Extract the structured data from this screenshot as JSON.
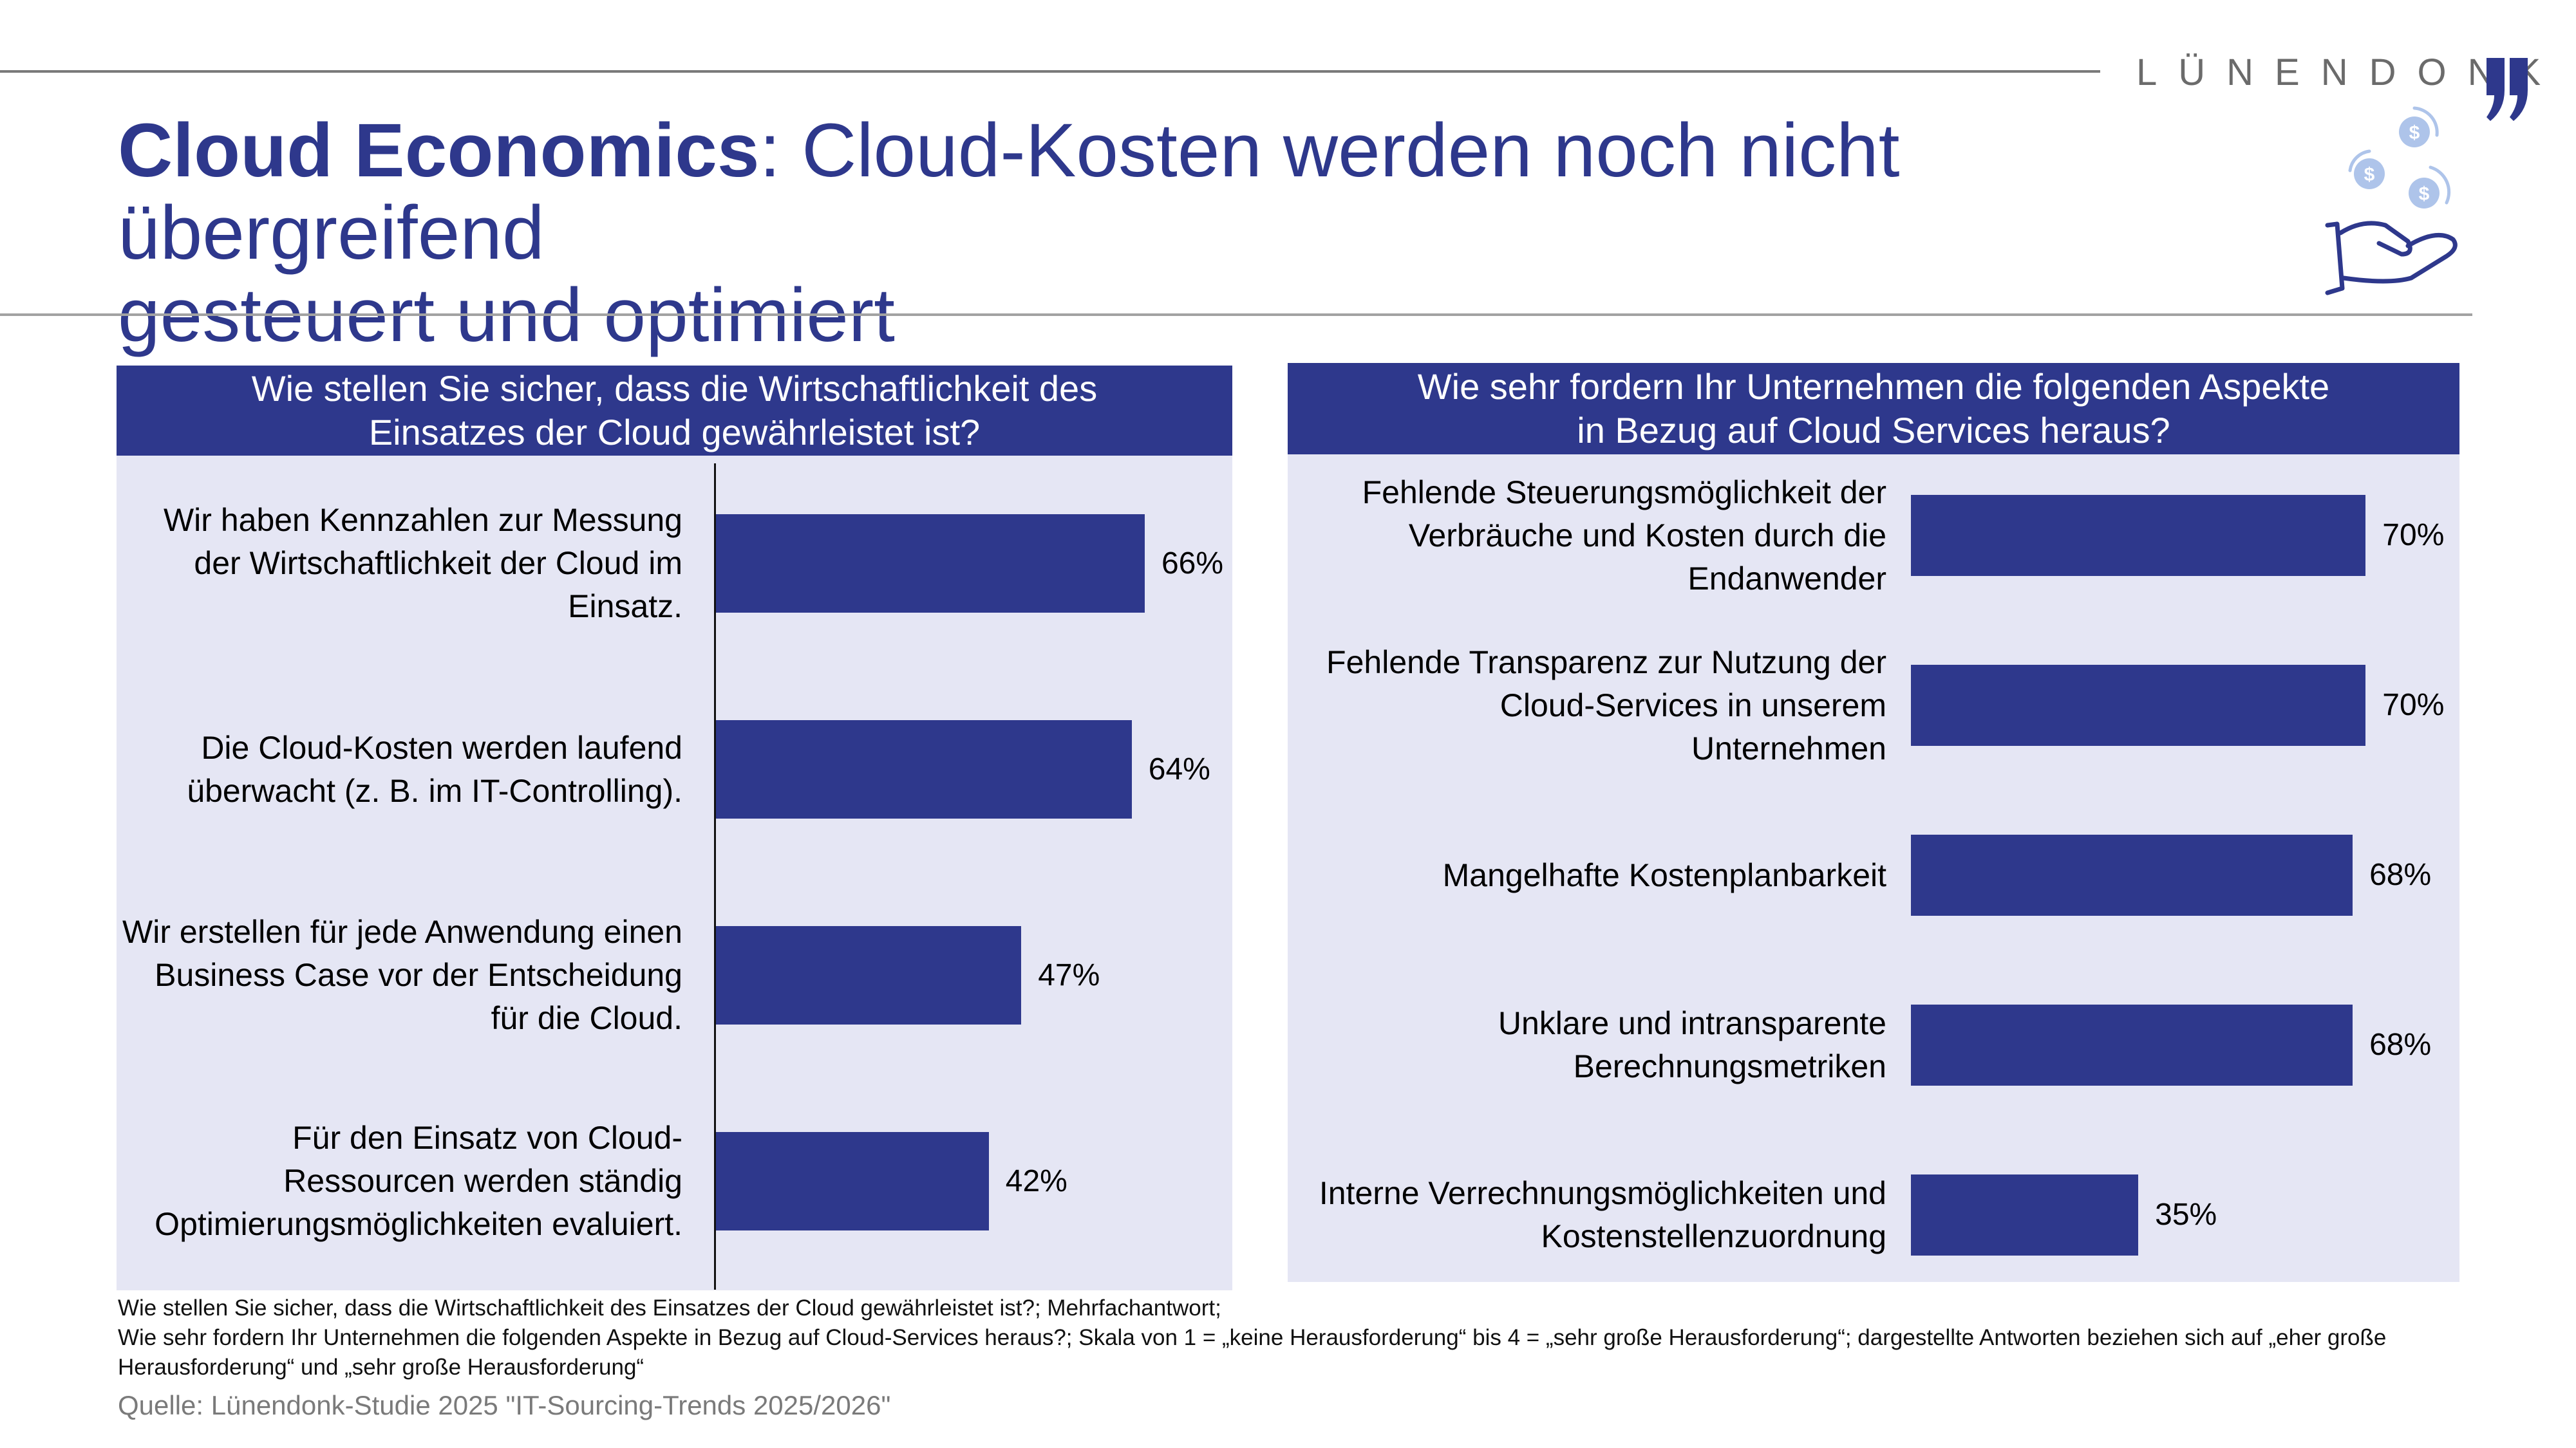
{
  "brand": {
    "name": "LÜNENDONK",
    "accent": "#2e388c",
    "icon": "quote-mark-icon"
  },
  "title": {
    "bold": "Cloud Economics",
    "rest_line1": ": Cloud-Kosten werden noch nicht übergreifend",
    "line2": "gesteuert und optimiert"
  },
  "decor_icon": "hand-with-coins-icon",
  "colors": {
    "bar": "#2e388c",
    "panel_bg": "#e5e6f4",
    "header_bg": "#2e388c",
    "title": "#2e388c",
    "source": "#7a7a7a"
  },
  "chart_data": [
    {
      "type": "bar",
      "orientation": "horizontal",
      "title": "Wie stellen Sie sicher, dass die Wirtschaftlichkeit des Einsatzes der Cloud gewährleistet ist?",
      "title_lines": [
        "Wie stellen Sie sicher, dass die Wirtschaftlichkeit des",
        "Einsatzes der Cloud gewährleistet ist?"
      ],
      "categories": [
        "Wir haben Kennzahlen zur Messung der Wirtschaftlichkeit der Cloud im Einsatz.",
        "Die Cloud-Kosten werden laufend überwacht (z. B. im IT-Controlling).",
        "Wir erstellen für jede Anwendung einen Business Case vor der Entscheidung für die Cloud.",
        "Für den Einsatz von Cloud-Ressourcen werden ständig Optimierungsmöglichkeiten evaluiert."
      ],
      "values": [
        66,
        64,
        47,
        42
      ],
      "value_labels": [
        "66%",
        "64%",
        "47%",
        "42%"
      ],
      "unit": "%",
      "xlim": [
        0,
        100
      ],
      "axis_line": true,
      "grid": false,
      "legend": "none"
    },
    {
      "type": "bar",
      "orientation": "horizontal",
      "title": "Wie sehr fordern Ihr Unternehmen die folgenden Aspekte in Bezug auf Cloud Services heraus?",
      "title_lines": [
        "Wie sehr fordern Ihr Unternehmen die folgenden Aspekte",
        "in Bezug auf Cloud Services heraus?"
      ],
      "categories": [
        "Fehlende Steuerungsmöglichkeit der Verbräuche und Kosten durch die Endanwender",
        "Fehlende Transparenz zur Nutzung der Cloud-Services in unserem Unternehmen",
        "Mangelhafte Kostenplanbarkeit",
        "Unklare und intransparente Berechnungsmetriken",
        "Interne Verrechnungsmöglichkeiten und Kostenstellenzuordnung"
      ],
      "values": [
        70,
        70,
        68,
        68,
        35
      ],
      "value_labels": [
        "70%",
        "70%",
        "68%",
        "68%",
        "35%"
      ],
      "unit": "%",
      "xlim": [
        0,
        100
      ],
      "axis_line": false,
      "grid": false,
      "legend": "none"
    }
  ],
  "footnotes": [
    "Wie stellen Sie sicher, dass die Wirtschaftlichkeit des Einsatzes der Cloud gewährleistet ist?; Mehrfachantwort;",
    "Wie sehr fordern Ihr Unternehmen die folgenden Aspekte in Bezug auf Cloud-Services heraus?; Skala von 1 = „keine Herausforderung“ bis 4 = „sehr große Herausforderung“; dargestellte Antworten beziehen sich auf „eher große Herausforderung“ und „sehr große Herausforderung“"
  ],
  "source": "Quelle: Lünendonk-Studie 2025 \"IT-Sourcing-Trends 2025/2026\""
}
